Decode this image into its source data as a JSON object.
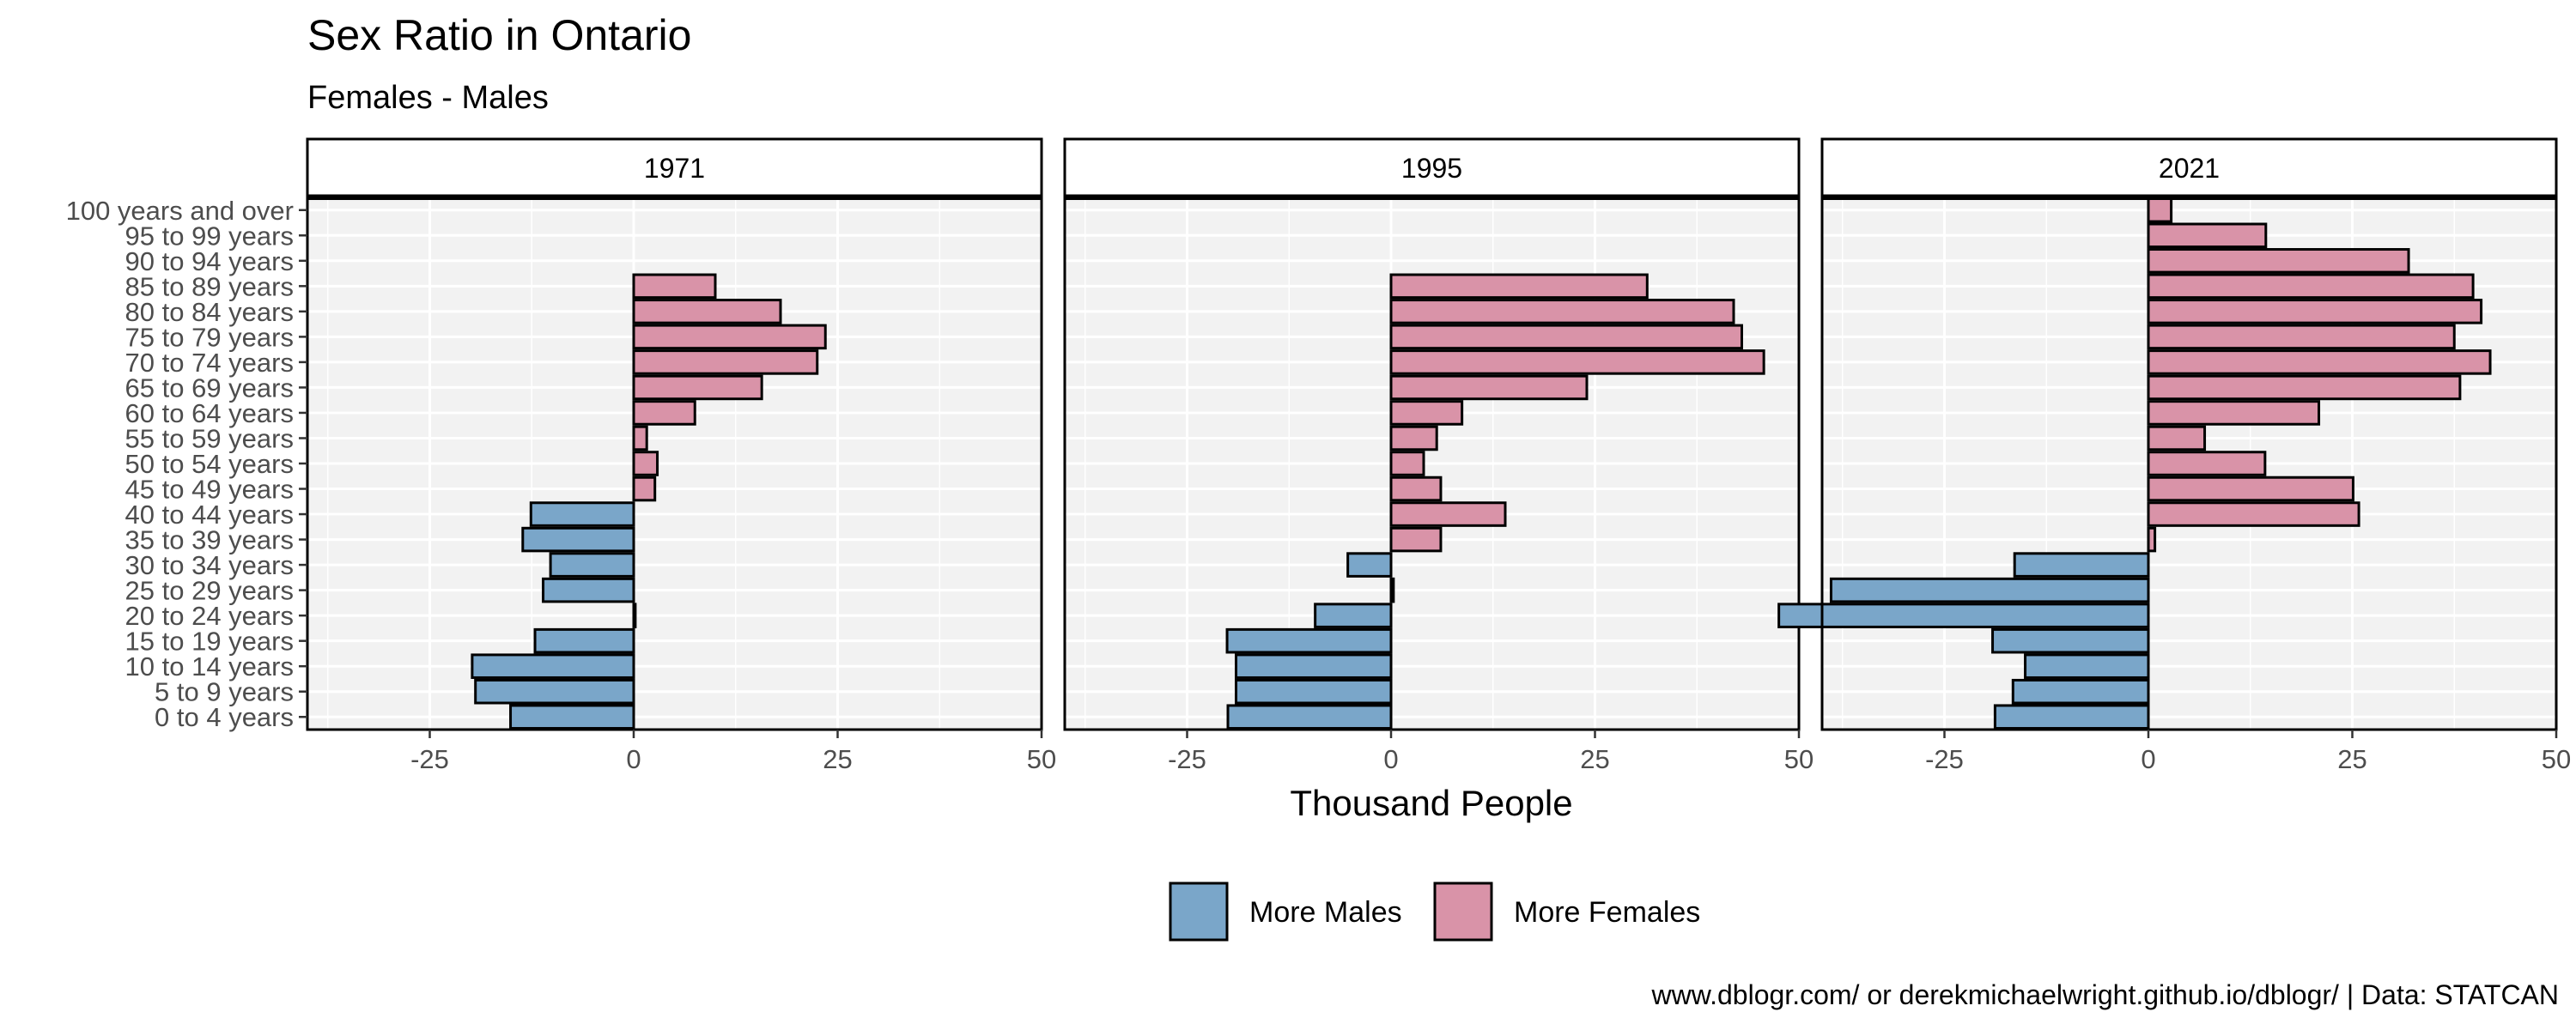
{
  "chart_data": {
    "type": "bar",
    "orientation": "horizontal",
    "title": "Sex Ratio in Ontario",
    "subtitle": "Females - Males",
    "xlabel": "Thousand People",
    "caption": "www.dblogr.com/ or derekmichaelwright.github.io/dblogr/ | Data: STATCAN",
    "xlim": [
      -40,
      50
    ],
    "x_ticks": [
      -25,
      0,
      25,
      50
    ],
    "x_tick_labels": [
      "-25",
      "0",
      "25",
      "50"
    ],
    "grid": true,
    "legend_position": "bottom",
    "legend": [
      {
        "label": "More Males",
        "color": "#7aa6c9"
      },
      {
        "label": "More Females",
        "color": "#d993a8"
      }
    ],
    "categories": [
      "100 years and over",
      "95 to 99 years",
      "90 to 94 years",
      "85 to 89 years",
      "80 to 84 years",
      "75 to 79 years",
      "70 to 74 years",
      "65 to 69 years",
      "60 to 64 years",
      "55 to 59 years",
      "50 to 54 years",
      "45 to 49 years",
      "40 to 44 years",
      "35 to 39 years",
      "30 to 34 years",
      "25 to 29 years",
      "20 to 24 years",
      "15 to 19 years",
      "10 to 14 years",
      "5 to 9 years",
      "0 to 4 years"
    ],
    "panels": [
      {
        "label": "1971",
        "values": [
          0,
          0,
          0,
          10,
          18,
          23.5,
          22.5,
          15.7,
          7.5,
          1.6,
          2.9,
          2.6,
          -12.6,
          -13.6,
          -10.2,
          -11.1,
          0.2,
          -12.1,
          -19.8,
          -19.4,
          -15.1
        ]
      },
      {
        "label": "1995",
        "values": [
          0,
          0,
          0,
          31.4,
          42,
          43,
          45.7,
          24,
          8.7,
          5.6,
          4,
          6.1,
          14,
          6.1,
          -5.3,
          0.3,
          -9.3,
          -20.1,
          -19,
          -19,
          -20
        ]
      },
      {
        "label": "2021",
        "values": [
          2.8,
          14.4,
          31.9,
          39.8,
          40.8,
          37.5,
          41.9,
          38.2,
          20.9,
          6.9,
          14.3,
          25.1,
          25.8,
          0.8,
          -16.4,
          -38.9,
          -45.3,
          -19.1,
          -15.1,
          -16.6,
          -18.8
        ]
      }
    ]
  }
}
